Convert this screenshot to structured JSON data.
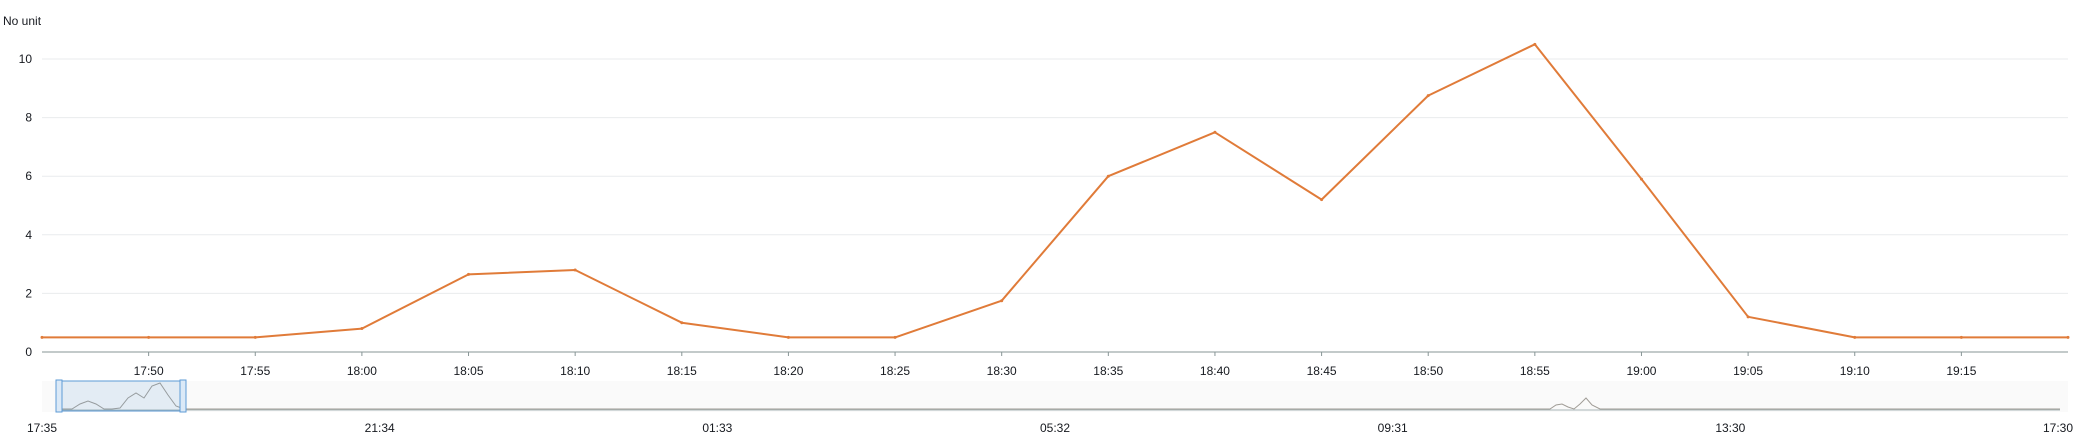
{
  "chart_data": {
    "type": "line",
    "unit_label": "No unit",
    "ylim": [
      0,
      10
    ],
    "y_ticks": [
      "0",
      "2",
      "4",
      "6",
      "8",
      "10"
    ],
    "x_tick_labels": [
      "17:50",
      "17:55",
      "18:00",
      "18:05",
      "18:10",
      "18:15",
      "18:20",
      "18:25",
      "18:30",
      "18:35",
      "18:40",
      "18:45",
      "18:50",
      "18:55",
      "19:00",
      "19:05",
      "19:10",
      "19:15"
    ],
    "x": [
      "17:45",
      "17:50",
      "17:55",
      "18:00",
      "18:05",
      "18:10",
      "18:15",
      "18:20",
      "18:25",
      "18:30",
      "18:35",
      "18:40",
      "18:45",
      "18:50",
      "18:55",
      "19:00",
      "19:05",
      "19:10",
      "19:15",
      "19:20"
    ],
    "series": [
      {
        "values": [
          0.5,
          0.5,
          0.5,
          0.8,
          2.65,
          2.8,
          1.0,
          0.5,
          0.5,
          1.75,
          6.0,
          7.5,
          5.2,
          8.75,
          10.5,
          5.9,
          1.2,
          0.5,
          0.5,
          0.5
        ]
      }
    ],
    "overview": {
      "tick_labels": [
        "17:35",
        "21:34",
        "01:33",
        "05:32",
        "09:31",
        "13:30",
        "17:30"
      ]
    },
    "grid": true,
    "legend": "none",
    "colors": {
      "line": "#e07b39",
      "grid": "#e9ebed",
      "axis": "#879596",
      "selection": "#5e9bd6"
    }
  }
}
